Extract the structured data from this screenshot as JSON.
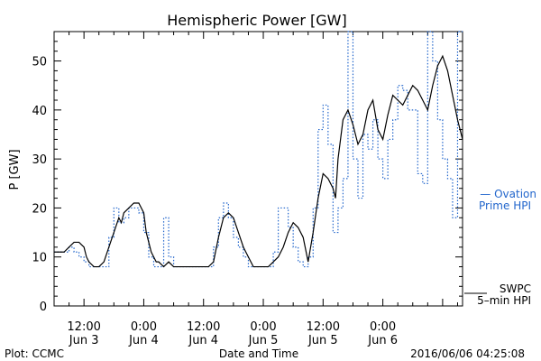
{
  "chart_data": {
    "type": "line",
    "title": "Hemispheric Power [GW]",
    "ylabel": "P [GW]",
    "xlabel": "Date and Time",
    "footer_left": "Plot: CCMC",
    "footer_right": "2016/06/06 04:25:08",
    "ylim": [
      0,
      56
    ],
    "yticks": [
      0,
      10,
      20,
      30,
      40,
      50
    ],
    "xlim": [
      -18,
      64
    ],
    "xticks": [
      {
        "x": -12,
        "time": "12:00",
        "date": "Jun 3"
      },
      {
        "x": 0,
        "time": "0:00",
        "date": "Jun 4"
      },
      {
        "x": 12,
        "time": "12:00",
        "date": "Jun 4"
      },
      {
        "x": 24,
        "time": "0:00",
        "date": "Jun 5"
      },
      {
        "x": 36,
        "time": "12:00",
        "date": "Jun 5"
      },
      {
        "x": 48,
        "time": "0:00",
        "date": "Jun 6"
      }
    ],
    "legend": {
      "ovation_label": [
        "— Ovation",
        "Prime HPI"
      ],
      "swpc_label": [
        "SWPC",
        "5–min HPI"
      ]
    },
    "series": [
      {
        "name": "SWPC 5-min HPI",
        "color": "#000000",
        "style": "solid",
        "x": [
          -18,
          -16,
          -15,
          -14,
          -13,
          -12.5,
          -12,
          -11.5,
          -11,
          -10,
          -9,
          -8,
          -7,
          -6,
          -5,
          -4.5,
          -4,
          -3,
          -2,
          -1,
          0,
          0.5,
          1,
          1.5,
          2,
          2.5,
          3,
          4,
          5,
          6,
          7,
          8,
          9,
          10,
          11,
          12,
          13,
          14,
          15,
          16,
          17,
          18,
          19,
          20,
          21,
          22,
          23,
          24,
          25,
          26,
          27,
          28,
          29,
          30,
          31,
          32,
          33,
          34,
          35,
          36,
          37,
          38,
          38.5,
          39,
          40,
          41,
          42,
          43,
          44,
          45,
          46,
          47,
          48,
          49,
          50,
          51,
          52,
          53,
          54,
          55,
          56,
          57,
          58,
          59,
          60,
          61,
          62,
          63,
          64
        ],
        "y": [
          11,
          11,
          12,
          13,
          13,
          12.5,
          12,
          10,
          9,
          8,
          8,
          9,
          12,
          15,
          18,
          17,
          19,
          20,
          21,
          21,
          19,
          15,
          13,
          11,
          10,
          9,
          9,
          8,
          9,
          8,
          8,
          8,
          8,
          8,
          8,
          8,
          8,
          9,
          14,
          18,
          19,
          18,
          15,
          12,
          10,
          8,
          8,
          8,
          8,
          9,
          10,
          12,
          15,
          17,
          16,
          14,
          9,
          15,
          22,
          27,
          26,
          24,
          22,
          30,
          38,
          40,
          37,
          33,
          35,
          40,
          42,
          36,
          34,
          39,
          43,
          42,
          41,
          43,
          45,
          44,
          42,
          40,
          45,
          49,
          51,
          48,
          43,
          38,
          34
        ]
      },
      {
        "name": "Ovation Prime HPI",
        "color": "#2266cc",
        "style": "dotted-step",
        "x": [
          -18,
          -16,
          -15,
          -14,
          -13,
          -12,
          -11,
          -10,
          -9,
          -8,
          -7,
          -6,
          -5,
          -4,
          -3,
          -2,
          -1,
          0,
          1,
          2,
          3,
          4,
          5,
          6,
          7,
          8,
          9,
          10,
          11,
          12,
          13,
          14,
          15,
          16,
          17,
          18,
          19,
          20,
          21,
          22,
          23,
          24,
          25,
          26,
          27,
          28,
          29,
          30,
          31,
          32,
          33,
          34,
          35,
          36,
          37,
          38,
          39,
          40,
          41,
          42,
          43,
          44,
          45,
          46,
          47,
          48,
          49,
          50,
          51,
          52,
          53,
          54,
          55,
          56,
          57,
          58,
          59,
          60,
          61,
          62,
          63
        ],
        "y": [
          11,
          11,
          12,
          11,
          10,
          9,
          8,
          8,
          8,
          8,
          14,
          20,
          17,
          18,
          20,
          20,
          19,
          15,
          10,
          8,
          8,
          18,
          10,
          8,
          8,
          8,
          8,
          8,
          8,
          8,
          8,
          12,
          18,
          21,
          18,
          14,
          12,
          10,
          8,
          8,
          8,
          8,
          8,
          11,
          20,
          20,
          16,
          12,
          9,
          8,
          10,
          20,
          36,
          41,
          33,
          15,
          20,
          26,
          56,
          30,
          22,
          35,
          32,
          38,
          30,
          26,
          34,
          38,
          45,
          44,
          40,
          40,
          27,
          25,
          56,
          50,
          38,
          30,
          26,
          18,
          56
        ]
      }
    ]
  }
}
